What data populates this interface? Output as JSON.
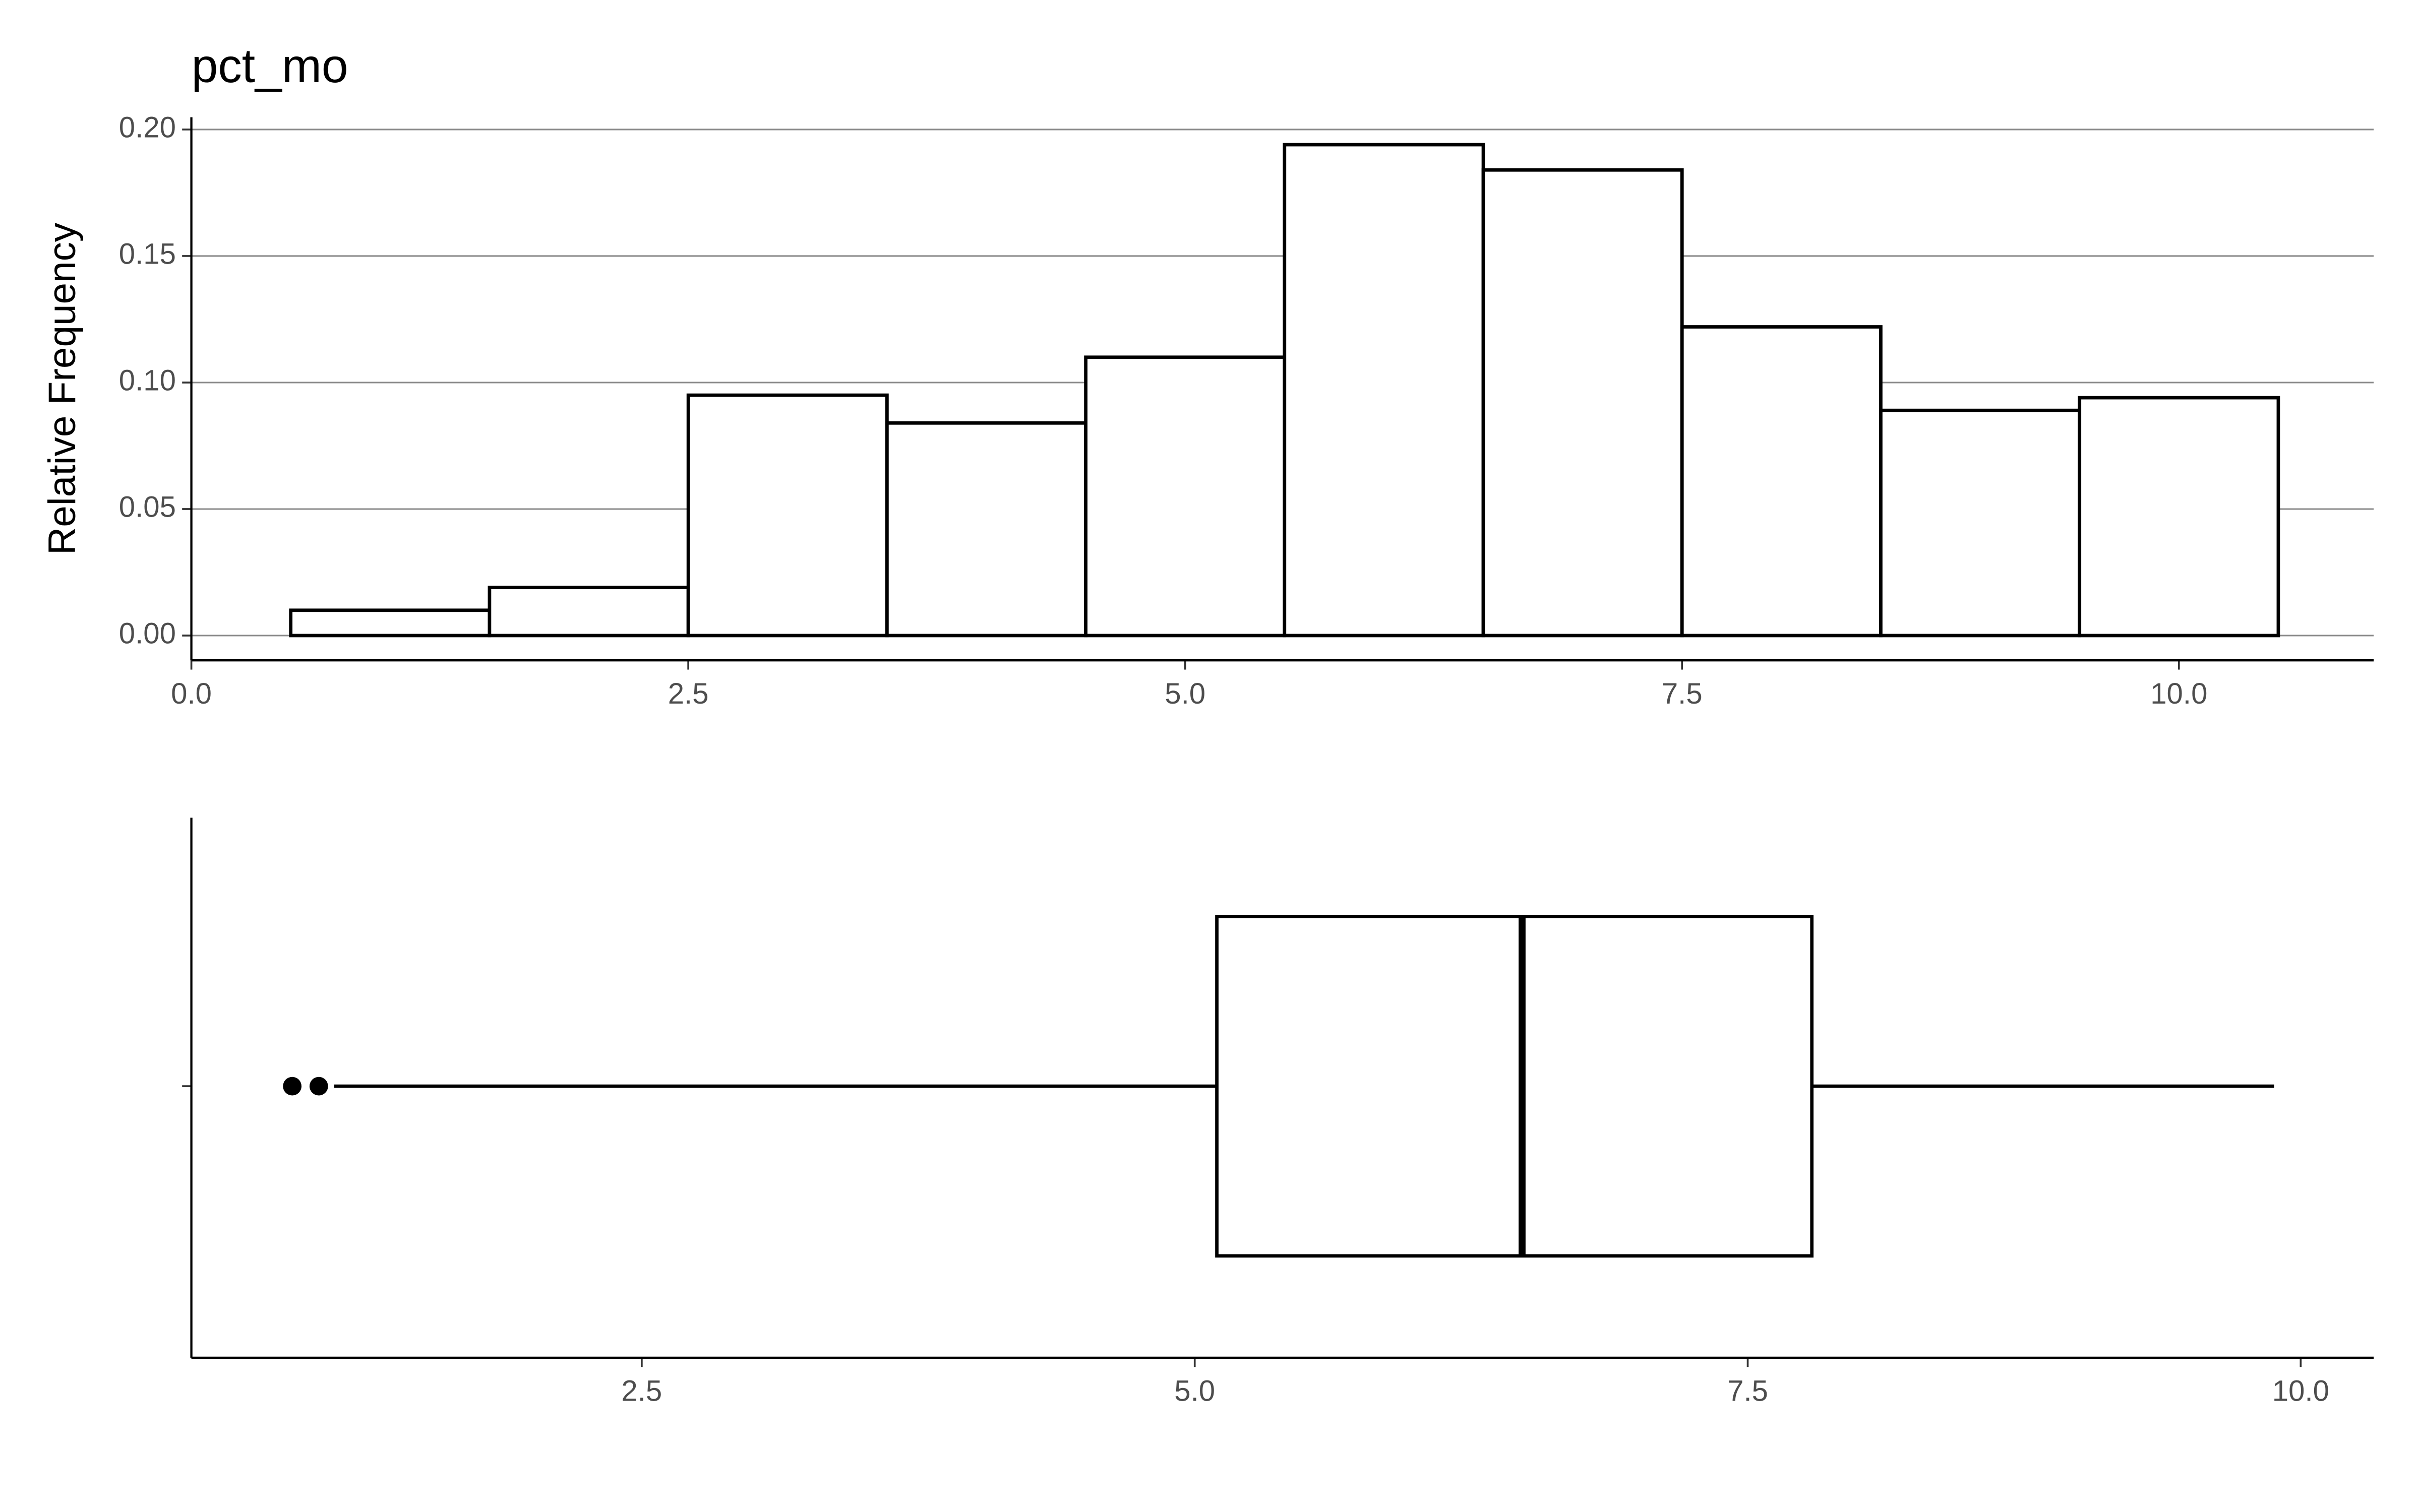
{
  "chart_data": [
    {
      "type": "histogram",
      "title": "pct_mo",
      "y_label": "Relative Frequency",
      "bins": [
        0.5,
        1.5,
        2.5,
        3.5,
        4.5,
        5.5,
        6.5,
        7.5,
        8.5,
        9.5,
        10.5
      ],
      "values": [
        0.01,
        0.019,
        0.095,
        0.084,
        0.11,
        0.194,
        0.184,
        0.122,
        0.089,
        0.094
      ],
      "color": "#ffffff",
      "edge_color": "#000000",
      "xlim": [
        0,
        10.98
      ],
      "ylim": [
        -0.0098,
        0.2024
      ],
      "xticks": [
        {
          "value": 0,
          "label": "0.0"
        },
        2.5,
        {
          "value": 5,
          "label": "5.0"
        },
        7.5,
        {
          "value": 10,
          "label": "10.0"
        }
      ],
      "yticks": [
        {
          "value": 0,
          "label": "0.00"
        },
        0.05,
        {
          "value": 0.1,
          "label": "0.10"
        },
        0.15,
        {
          "value": 0.2,
          "label": "0.20"
        }
      ],
      "grid": true
    },
    {
      "type": "box",
      "whisker_low": 1.11,
      "q1": 5.1,
      "median": 6.48,
      "q3": 7.79,
      "whisker_high": 9.88,
      "outliers": [
        0.92,
        1.04
      ],
      "color": "#ffffff",
      "edge_color": "#000000",
      "xlim": [
        0.464,
        10.33
      ],
      "xticks": [
        2.5,
        {
          "value": 5,
          "label": "5.0"
        },
        7.5,
        {
          "value": 10,
          "label": "10.0"
        }
      ]
    }
  ]
}
